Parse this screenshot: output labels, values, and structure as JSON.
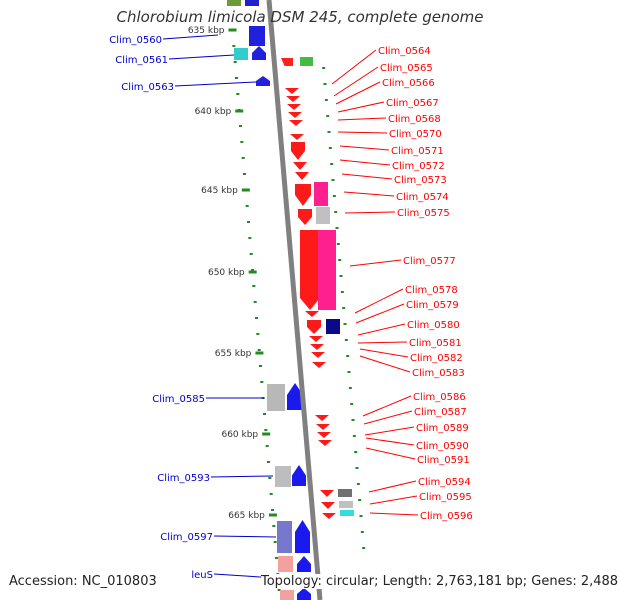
{
  "title": "Chlorobium limicola DSM 245, complete genome",
  "accession_label": "Accession: NC_010803",
  "stats_label": "Topology: circular; Length: 2,763,181 bp; Genes: 2,488",
  "colors": {
    "backbone": "#808080",
    "left_label": "#0000cc",
    "right_label": "#ff0000",
    "tick": "#228b22",
    "tick_label": "#333333"
  },
  "kbp_ticks": [
    {
      "label": "635 kbp"
    },
    {
      "label": "640 kbp"
    },
    {
      "label": "645 kbp"
    },
    {
      "label": "650 kbp"
    },
    {
      "label": "655 kbp"
    },
    {
      "label": "660 kbp"
    },
    {
      "label": "665 kbp"
    }
  ],
  "left_gene_labels": [
    "Clim_0560",
    "Clim_0561",
    "Clim_0563",
    "Clim_0585",
    "Clim_0593",
    "Clim_0597",
    "leuS"
  ],
  "right_gene_labels": [
    "Clim_0564",
    "Clim_0565",
    "Clim_0566",
    "Clim_0567",
    "Clim_0568",
    "Clim_0570",
    "Clim_0571",
    "Clim_0572",
    "Clim_0573",
    "Clim_0574",
    "Clim_0575",
    "Clim_0577",
    "Clim_0578",
    "Clim_0579",
    "Clim_0580",
    "Clim_0581",
    "Clim_0582",
    "Clim_0583",
    "Clim_0586",
    "Clim_0587",
    "Clim_0589",
    "Clim_0590",
    "Clim_0591",
    "Clim_0594",
    "Clim_0595",
    "Clim_0596"
  ]
}
